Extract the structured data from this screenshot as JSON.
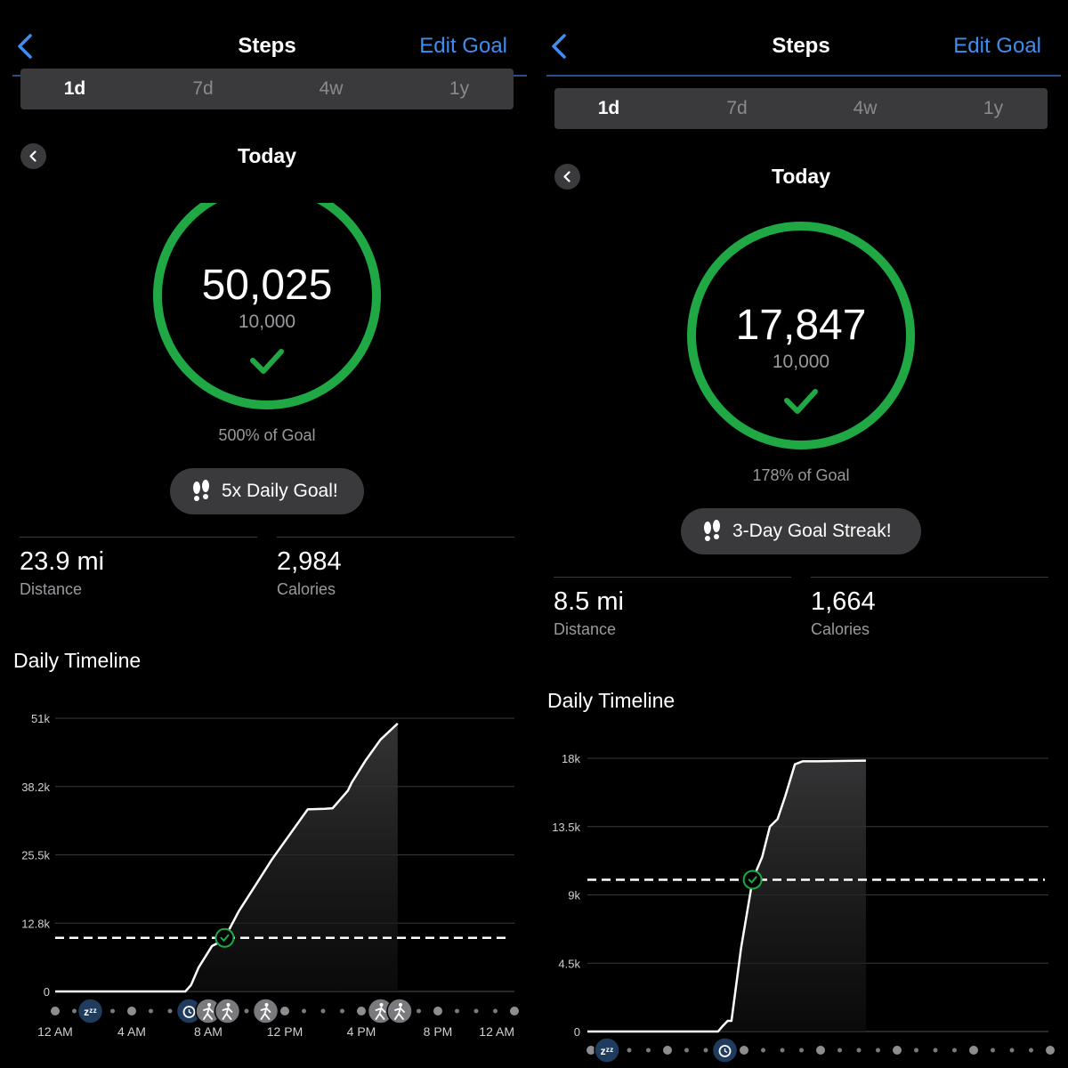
{
  "panels": [
    {
      "header": {
        "title": "Steps",
        "edit_goal": "Edit Goal"
      },
      "tabs": [
        "1d",
        "7d",
        "4w",
        "1y"
      ],
      "active_tab": "1d",
      "day_label": "Today",
      "steps": "50,025",
      "goal": "10,000",
      "percent_of_goal": "500% of Goal",
      "progress_fraction": 1.0,
      "badge": "5x Daily Goal!",
      "distance": {
        "value": "23.9 mi",
        "label": "Distance"
      },
      "calories": {
        "value": "2,984",
        "label": "Calories"
      },
      "timeline_title": "Daily Timeline"
    },
    {
      "header": {
        "title": "Steps",
        "edit_goal": "Edit Goal"
      },
      "tabs": [
        "1d",
        "7d",
        "4w",
        "1y"
      ],
      "active_tab": "1d",
      "day_label": "Today",
      "steps": "17,847",
      "goal": "10,000",
      "percent_of_goal": "178% of Goal",
      "progress_fraction": 1.0,
      "badge": "3-Day Goal Streak!",
      "distance": {
        "value": "8.5 mi",
        "label": "Distance"
      },
      "calories": {
        "value": "1,664",
        "label": "Calories"
      },
      "timeline_title": "Daily Timeline"
    }
  ],
  "colors": {
    "accent": "#3d8ef0",
    "goal_green": "#20a845",
    "background": "#000000",
    "chip": "#3a3a3c"
  },
  "chart_data": [
    {
      "type": "line",
      "y_tick_labels": [
        "0",
        "12.8k",
        "25.5k",
        "38.2k",
        "51k"
      ],
      "y_ticks": [
        0,
        12750,
        25500,
        38250,
        51000
      ],
      "ylim": [
        0,
        51000
      ],
      "x_tick_labels": [
        "12 AM",
        "4 AM",
        "8 AM",
        "12 PM",
        "4 PM",
        "8 PM",
        "12 AM"
      ],
      "xlim": [
        0,
        24
      ],
      "goal_line": 10000,
      "grid": true,
      "series": [
        {
          "x": [
            0,
            6.8,
            7.1,
            7.5,
            8.2,
            8.8,
            9.6,
            10.5,
            11.3,
            12.4,
            13.2,
            14.1,
            14.5,
            15.3,
            15.5,
            16.2,
            17.0,
            17.9
          ],
          "y": [
            0,
            0,
            1200,
            4500,
            8500,
            9600,
            15000,
            20000,
            24500,
            30000,
            34000,
            34100,
            34200,
            37500,
            39000,
            43000,
            47000,
            50025
          ]
        }
      ],
      "timeline_icons": [
        "sleep-icon",
        "alarm-icon",
        "walk-icon",
        "walk-icon",
        "walk-icon",
        "walk-icon",
        "walk-icon"
      ]
    },
    {
      "type": "line",
      "y_tick_labels": [
        "0",
        "4.5k",
        "9k",
        "13.5k",
        "18k"
      ],
      "y_ticks": [
        0,
        4500,
        9000,
        13500,
        18000
      ],
      "ylim": [
        0,
        18000
      ],
      "xlim": [
        0,
        24
      ],
      "goal_line": 10000,
      "grid": true,
      "series": [
        {
          "x": [
            0,
            6.8,
            7.0,
            7.3,
            7.5,
            8.0,
            8.6,
            9.1,
            9.5,
            9.9,
            10.3,
            10.8,
            11.2,
            12.0,
            13.5,
            14.5
          ],
          "y": [
            0,
            0,
            300,
            700,
            700,
            5500,
            10000,
            11500,
            13500,
            14000,
            15500,
            17600,
            17800,
            17800,
            17830,
            17847
          ]
        }
      ],
      "timeline_icons": [
        "sleep-icon",
        "alarm-icon"
      ]
    }
  ]
}
